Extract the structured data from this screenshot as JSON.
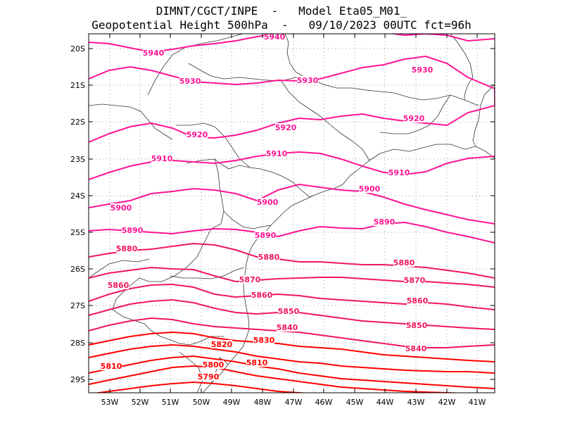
{
  "header": {
    "line1": "DIMNT/CGCT/INPE  -   Model Eta05_M01_",
    "line2": "Geopotential Height 500hPa  -   09/10/2023 00UTC fct=96h"
  },
  "axes": {
    "lat_labels": [
      "20S",
      "21S",
      "22S",
      "23S",
      "24S",
      "25S",
      "26S",
      "27S",
      "28S",
      "29S"
    ],
    "lon_labels": [
      "53W",
      "52W",
      "51W",
      "50W",
      "49W",
      "48W",
      "47W",
      "46W",
      "45W",
      "44W",
      "43W",
      "42W",
      "41W"
    ]
  },
  "colors": {
    "high": "#ff1493",
    "mid": "#f0185a",
    "low": "#ff0000"
  },
  "contours": [
    {
      "value": "5940",
      "labels": [
        "5940",
        "5940"
      ]
    },
    {
      "value": "5930",
      "labels": [
        "5930",
        "5930",
        "5930"
      ]
    },
    {
      "value": "5920",
      "labels": [
        "5920",
        "5920",
        "5920"
      ]
    },
    {
      "value": "5910",
      "labels": [
        "5910",
        "5910",
        "5910"
      ]
    },
    {
      "value": "5900",
      "labels": [
        "5900",
        "5900",
        "5900"
      ]
    },
    {
      "value": "5890",
      "labels": [
        "5890",
        "5890",
        "5890"
      ]
    },
    {
      "value": "5880",
      "labels": [
        "5880",
        "5880",
        "5880"
      ]
    },
    {
      "value": "5870",
      "labels": [
        "5870",
        "5870"
      ]
    },
    {
      "value": "5860",
      "labels": [
        "5860",
        "5860",
        "5860"
      ]
    },
    {
      "value": "5850",
      "labels": [
        "5850",
        "5850"
      ]
    },
    {
      "value": "5840",
      "labels": [
        "5840",
        "5840"
      ]
    },
    {
      "value": "5830",
      "labels": [
        "5830"
      ]
    },
    {
      "value": "5820",
      "labels": [
        "5820"
      ]
    },
    {
      "value": "5810",
      "labels": [
        "5810",
        "5810"
      ]
    },
    {
      "value": "5800",
      "labels": [
        "5800"
      ]
    },
    {
      "value": "5790",
      "labels": [
        "5790"
      ]
    }
  ]
}
